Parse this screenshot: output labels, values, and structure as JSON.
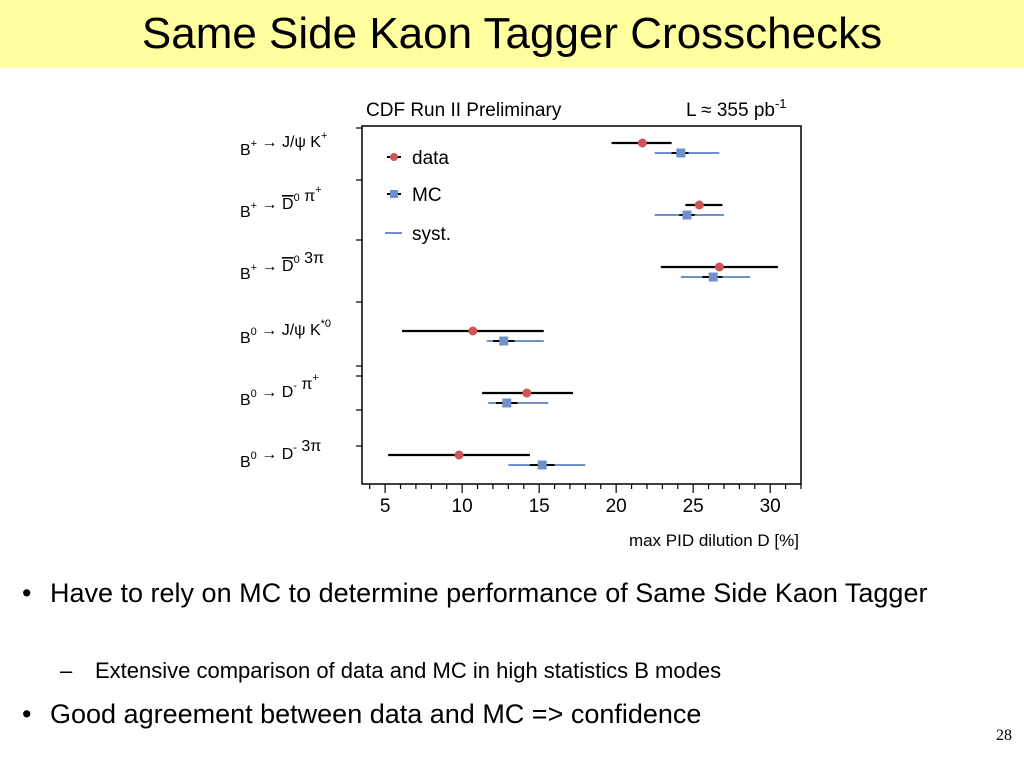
{
  "slide": {
    "title": "Same Side Kaon Tagger Crosschecks",
    "page_number": "28"
  },
  "bullets": [
    {
      "level": 1,
      "marker": "•",
      "text": "Have to rely on MC to determine performance of Same Side Kaon Tagger"
    },
    {
      "level": 2,
      "marker": "–",
      "text": "Extensive comparison of data and MC in high statistics B modes"
    },
    {
      "level": 1,
      "marker": "•",
      "text": "Good agreement between data and MC => confidence"
    }
  ],
  "chart_data": {
    "type": "scatter",
    "header_left": "CDF Run II Preliminary",
    "header_right": {
      "text": "L ≈ 355 pb",
      "sup": "-1"
    },
    "xlabel": "max PID dilution D [%]",
    "ylabel": "",
    "xlim": [
      3.5,
      32
    ],
    "xticks": [
      "5",
      "10",
      "15",
      "20",
      "25",
      "30"
    ],
    "categories": [
      {
        "parts": [
          [
            "B",
            "+",
            ""
          ],
          [
            " → J/ψ K",
            "+",
            ""
          ]
        ]
      },
      {
        "parts": [
          [
            "B",
            "+",
            ""
          ],
          [
            " → ",
            "",
            ""
          ],
          [
            "D",
            "0",
            "bar"
          ],
          [
            " π",
            "+",
            ""
          ]
        ]
      },
      {
        "parts": [
          [
            "B",
            "+",
            ""
          ],
          [
            " → ",
            "",
            ""
          ],
          [
            "D",
            "0",
            "bar"
          ],
          [
            " 3π",
            "",
            ""
          ]
        ]
      },
      {
        "parts": [
          [
            "B",
            "0",
            ""
          ],
          [
            " → J/ψ K",
            "*0",
            ""
          ]
        ]
      },
      {
        "parts": [
          [
            "B",
            "0",
            ""
          ],
          [
            " → D",
            "-",
            ""
          ],
          [
            " π",
            "+",
            ""
          ]
        ]
      },
      {
        "parts": [
          [
            "B",
            "0",
            ""
          ],
          [
            " → D",
            "-",
            ""
          ],
          [
            " 3π",
            "",
            ""
          ]
        ]
      }
    ],
    "series": [
      {
        "name": "data",
        "color": "#cc5555",
        "marker": "circle",
        "values": [
          21.7,
          25.4,
          26.7,
          10.7,
          14.2,
          9.8
        ],
        "errors": [
          [
            19.7,
            23.6
          ],
          [
            24.5,
            26.9
          ],
          [
            22.9,
            30.5
          ],
          [
            6.1,
            15.3
          ],
          [
            11.3,
            17.2
          ],
          [
            5.2,
            14.4
          ]
        ]
      },
      {
        "name": "MC",
        "color": "#7090cc",
        "marker": "square",
        "values": [
          24.2,
          24.6,
          26.3,
          12.7,
          12.9,
          15.2
        ],
        "errors": [
          [
            23.6,
            24.7
          ],
          [
            24.1,
            25.1
          ],
          [
            25.6,
            26.9
          ],
          [
            12.0,
            13.4
          ],
          [
            12.2,
            13.6
          ],
          [
            14.4,
            16.0
          ]
        ],
        "syst": [
          [
            22.5,
            26.7
          ],
          [
            22.5,
            27.0
          ],
          [
            24.2,
            28.7
          ],
          [
            11.6,
            15.3
          ],
          [
            11.7,
            15.6
          ],
          [
            13.0,
            18.0
          ]
        ]
      }
    ],
    "legend": {
      "placement": "top-left",
      "entries": [
        "data",
        "MC",
        "syst."
      ]
    },
    "grid": false
  }
}
